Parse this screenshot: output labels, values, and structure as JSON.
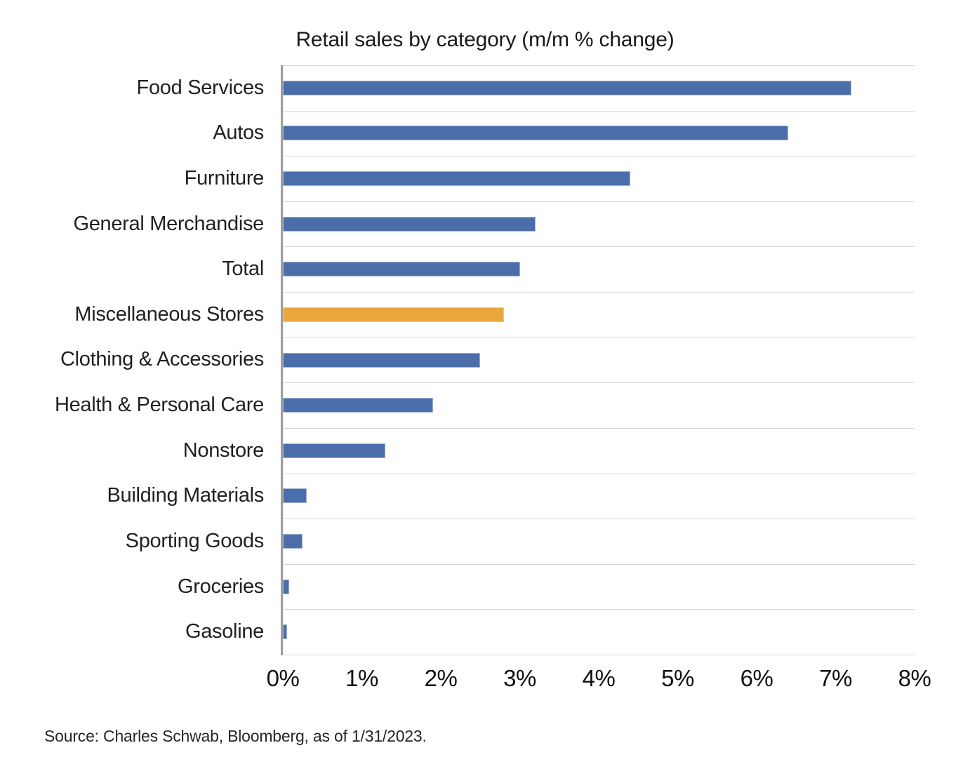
{
  "title": "Retail sales by category (m/m % change)",
  "source": "Source: Charles Schwab, Bloomberg, as of 1/31/2023.",
  "chart_data": {
    "type": "bar",
    "orientation": "horizontal",
    "title": "Retail sales by category (m/m % change)",
    "categories": [
      "Food Services",
      "Autos",
      "Furniture",
      "General Merchandise",
      "Total",
      "Miscellaneous Stores",
      "Clothing & Accessories",
      "Health & Personal Care",
      "Nonstore",
      "Building Materials",
      "Sporting Goods",
      "Groceries",
      "Gasoline"
    ],
    "values": [
      7.2,
      6.4,
      4.4,
      3.2,
      3.0,
      2.8,
      2.5,
      1.9,
      1.3,
      0.3,
      0.25,
      0.08,
      0.05
    ],
    "value_unit": "%",
    "highlight_index": 5,
    "highlight_category": "Miscellaneous Stores",
    "x_ticks": [
      "0%",
      "1%",
      "2%",
      "3%",
      "4%",
      "5%",
      "6%",
      "7%",
      "8%"
    ],
    "xlim": [
      0,
      8
    ],
    "xlabel": "",
    "ylabel": "",
    "legend": "none",
    "grid": "horizontal row-boundary gridlines only",
    "colors": {
      "bar_default": "#4B6DA9",
      "bar_default_border": "#9FB2D4",
      "bar_highlight": "#E9A63B",
      "bar_highlight_border": "#F0C988",
      "gridline": "#d6d6d6",
      "axis_line": "#9c9c9c",
      "text": "#1a1a1a"
    }
  }
}
